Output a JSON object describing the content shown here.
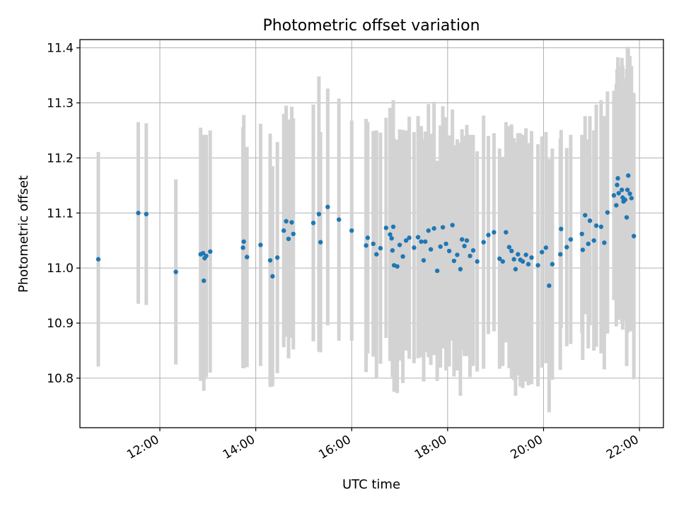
{
  "chart_data": {
    "type": "scatter",
    "title": "Photometric offset variation",
    "xlabel": "UTC time",
    "ylabel": "Photometric offset",
    "x_axis_type": "time",
    "xlim": [
      "10:20",
      "22:30"
    ],
    "ylim": [
      10.71,
      11.415
    ],
    "xticks": [
      "12:00",
      "14:00",
      "16:00",
      "18:00",
      "20:00",
      "22:00"
    ],
    "yticks": [
      "10.8",
      "10.9",
      "11.0",
      "11.1",
      "11.2",
      "11.3",
      "11.4"
    ],
    "grid": true,
    "legend": "none",
    "colors": {
      "point": "#1f77b4",
      "errorbar": "#d3d3d3",
      "grid": "#b0b0b0"
    },
    "series": [
      {
        "x": [
          "10:43",
          "11:33",
          "11:43",
          "12:20",
          "12:51",
          "12:54",
          "12:55",
          "12:56",
          "12:58",
          "13:03",
          "13:44",
          "13:45",
          "13:49",
          "14:06",
          "14:18",
          "14:21",
          "14:27",
          "14:35",
          "14:38",
          "14:41",
          "14:45",
          "14:47",
          "15:12",
          "15:19",
          "15:21",
          "15:30",
          "15:44",
          "16:00",
          "16:18",
          "16:20",
          "16:27",
          "16:31",
          "16:36",
          "16:43",
          "16:48",
          "16:50",
          "16:51",
          "16:52",
          "16:53",
          "16:57",
          "17:00",
          "17:04",
          "17:08",
          "17:12",
          "17:18",
          "17:23",
          "17:27",
          "17:30",
          "17:32",
          "17:36",
          "17:39",
          "17:43",
          "17:47",
          "17:51",
          "17:54",
          "17:58",
          "18:02",
          "18:06",
          "18:08",
          "18:12",
          "18:16",
          "18:18",
          "18:21",
          "18:24",
          "18:28",
          "18:32",
          "18:37",
          "18:45",
          "18:51",
          "18:58",
          "19:05",
          "19:09",
          "19:13",
          "19:17",
          "19:20",
          "19:23",
          "19:25",
          "19:28",
          "19:31",
          "19:34",
          "19:38",
          "19:41",
          "19:45",
          "19:53",
          "19:58",
          "20:03",
          "20:07",
          "20:11",
          "20:21",
          "20:22",
          "20:29",
          "20:34",
          "20:48",
          "20:49",
          "20:52",
          "20:56",
          "20:58",
          "21:03",
          "21:06",
          "21:12",
          "21:16",
          "21:20",
          "21:28",
          "21:31",
          "21:32",
          "21:33",
          "21:34",
          "21:38",
          "21:39",
          "21:40",
          "21:42",
          "21:44",
          "21:45",
          "21:46",
          "21:48",
          "21:50",
          "21:53"
        ],
        "y": [
          11.016,
          11.1,
          11.098,
          10.993,
          11.025,
          11.027,
          10.977,
          11.018,
          11.022,
          11.03,
          11.037,
          11.048,
          11.02,
          11.042,
          11.014,
          10.985,
          11.019,
          11.068,
          11.085,
          11.053,
          11.083,
          11.062,
          11.082,
          11.098,
          11.047,
          11.111,
          11.088,
          11.068,
          11.041,
          11.055,
          11.044,
          11.025,
          11.036,
          11.073,
          11.061,
          11.054,
          11.032,
          11.075,
          11.005,
          11.003,
          11.042,
          11.021,
          11.05,
          11.055,
          11.037,
          11.056,
          11.048,
          11.014,
          11.048,
          11.068,
          11.034,
          11.072,
          10.995,
          11.039,
          11.074,
          11.044,
          11.031,
          11.078,
          11.013,
          11.024,
          10.998,
          11.052,
          11.04,
          11.05,
          11.022,
          11.032,
          11.012,
          11.047,
          11.06,
          11.065,
          11.017,
          11.012,
          11.065,
          11.038,
          11.031,
          11.016,
          10.998,
          11.025,
          11.015,
          11.012,
          11.024,
          11.007,
          11.019,
          11.005,
          11.029,
          11.037,
          10.968,
          11.007,
          11.025,
          11.071,
          11.038,
          11.052,
          11.062,
          11.033,
          11.096,
          11.044,
          11.086,
          11.05,
          11.077,
          11.075,
          11.046,
          11.101,
          11.132,
          11.114,
          11.151,
          11.163,
          11.136,
          11.142,
          11.128,
          11.121,
          11.124,
          11.092,
          11.142,
          11.168,
          11.135,
          11.127,
          11.058
        ],
        "yerr": [
          0.195,
          0.165,
          0.165,
          0.168,
          0.23,
          0.215,
          0.2,
          0.22,
          0.22,
          0.22,
          0.219,
          0.23,
          0.2,
          0.22,
          0.23,
          0.2,
          0.21,
          0.212,
          0.21,
          0.217,
          0.21,
          0.21,
          0.215,
          0.25,
          0.2,
          0.215,
          0.22,
          0.2,
          0.23,
          0.21,
          0.205,
          0.225,
          0.21,
          0.2,
          0.23,
          0.22,
          0.23,
          0.23,
          0.23,
          0.23,
          0.21,
          0.23,
          0.2,
          0.22,
          0.21,
          0.22,
          0.21,
          0.22,
          0.2,
          0.23,
          0.21,
          0.23,
          0.2,
          0.22,
          0.22,
          0.23,
          0.21,
          0.21,
          0.21,
          0.21,
          0.23,
          0.2,
          0.2,
          0.21,
          0.22,
          0.21,
          0.2,
          0.23,
          0.18,
          0.18,
          0.2,
          0.19,
          0.2,
          0.22,
          0.23,
          0.22,
          0.23,
          0.22,
          0.23,
          0.23,
          0.23,
          0.22,
          0.23,
          0.22,
          0.21,
          0.21,
          0.23,
          0.21,
          0.21,
          0.18,
          0.18,
          0.19,
          0.18,
          0.2,
          0.18,
          0.19,
          0.19,
          0.2,
          0.22,
          0.23,
          0.23,
          0.22,
          0.19,
          0.22,
          0.21,
          0.22,
          0.23,
          0.24,
          0.24,
          0.21,
          0.22,
          0.27,
          0.26,
          0.23,
          0.25,
          0.24,
          0.26
        ]
      }
    ]
  }
}
